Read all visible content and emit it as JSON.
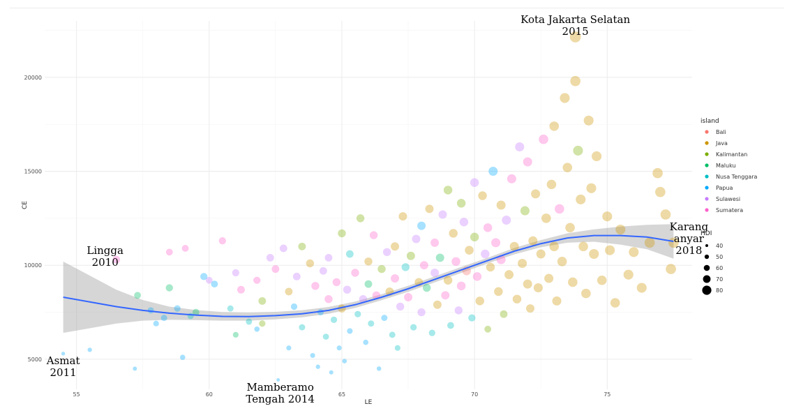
{
  "chart_data": {
    "type": "scatter",
    "xlabel": "LE",
    "ylabel": "CE",
    "xlim": [
      53.8,
      78.2
    ],
    "ylim": [
      3400,
      23000
    ],
    "x_ticks": [
      55,
      60,
      65,
      70,
      75
    ],
    "y_ticks": [
      5000,
      10000,
      15000,
      20000
    ],
    "grid": true,
    "legend_placement": "right",
    "color_legend": {
      "title": "island",
      "entries": [
        {
          "name": "Bali",
          "color": "#F8766D"
        },
        {
          "name": "Java",
          "color": "#CD9600"
        },
        {
          "name": "Kalimantan",
          "color": "#7CAE00"
        },
        {
          "name": "Maluku",
          "color": "#00BE67"
        },
        {
          "name": "Nusa Tenggara",
          "color": "#00BFC4"
        },
        {
          "name": "Papua",
          "color": "#00A9FF"
        },
        {
          "name": "Sulawesi",
          "color": "#C77CFF"
        },
        {
          "name": "Sumatera",
          "color": "#FF61CC"
        }
      ]
    },
    "size_legend": {
      "title": "HDI",
      "values": [
        40,
        50,
        60,
        70,
        80
      ]
    },
    "annotations": [
      {
        "lines": [
          "Kota Jakarta Selatan",
          "2015"
        ],
        "x": 73.8,
        "y": 22150
      },
      {
        "lines": [
          "Lingga",
          "2010"
        ],
        "x": 56.5,
        "y": 10300
      },
      {
        "lines": [
          "Karang",
          "anyar",
          "2018"
        ],
        "x": 77.5,
        "y": 11200
      },
      {
        "lines": [
          "Asmat",
          "2011"
        ],
        "x": 54.5,
        "y": 5300
      },
      {
        "lines": [
          "Mamberamo",
          "Tengah 2014"
        ],
        "x": 62.6,
        "y": 3950
      }
    ],
    "smooth": {
      "color": "#3366FF",
      "x": [
        54.5,
        55.5,
        56.5,
        57.5,
        58.5,
        59.5,
        60.5,
        61.5,
        62.5,
        63.5,
        64.5,
        65.5,
        66.5,
        67.5,
        68.5,
        69.5,
        70.5,
        71.5,
        72.5,
        73.5,
        74.5,
        75.5,
        76.5,
        77.5
      ],
      "y": [
        8300,
        8050,
        7800,
        7600,
        7450,
        7350,
        7280,
        7270,
        7320,
        7420,
        7600,
        7900,
        8300,
        8750,
        9250,
        9750,
        10250,
        10750,
        11150,
        11450,
        11580,
        11580,
        11500,
        11270
      ],
      "ymin": [
        6400,
        6650,
        6900,
        7050,
        7100,
        7080,
        7050,
        7050,
        7120,
        7230,
        7420,
        7730,
        8140,
        8590,
        9090,
        9590,
        10100,
        10580,
        10960,
        11200,
        11250,
        11100,
        10850,
        10350
      ],
      "ymax": [
        10200,
        9450,
        8700,
        8150,
        7800,
        7620,
        7510,
        7490,
        7520,
        7610,
        7780,
        8070,
        8460,
        8910,
        9410,
        9910,
        10400,
        10920,
        11340,
        11700,
        11910,
        12060,
        12150,
        12190
      ]
    },
    "points": [
      [
        54.5,
        5300,
        "Papua",
        42
      ],
      [
        55.5,
        5500,
        "Papua",
        45
      ],
      [
        56.5,
        10300,
        "Sumatera",
        62
      ],
      [
        57.2,
        4500,
        "Papua",
        44
      ],
      [
        57.3,
        8400,
        "Maluku",
        58
      ],
      [
        57.8,
        7600,
        "Papua",
        55
      ],
      [
        58.0,
        6900,
        "Papua",
        52
      ],
      [
        58.3,
        7200,
        "Papua",
        55
      ],
      [
        58.5,
        8800,
        "Maluku",
        60
      ],
      [
        58.5,
        10700,
        "Sumatera",
        58
      ],
      [
        58.8,
        7700,
        "Papua",
        56
      ],
      [
        59.0,
        5100,
        "Papua",
        50
      ],
      [
        59.1,
        10900,
        "Sumatera",
        58
      ],
      [
        59.3,
        7300,
        "Nusa Tenggara",
        55
      ],
      [
        59.5,
        7500,
        "Maluku",
        58
      ],
      [
        59.8,
        9400,
        "Papua",
        60
      ],
      [
        60.0,
        9200,
        "Sulawesi",
        58
      ],
      [
        60.2,
        9000,
        "Papua",
        58
      ],
      [
        60.5,
        11300,
        "Sumatera",
        60
      ],
      [
        60.8,
        7700,
        "Nusa Tenggara",
        55
      ],
      [
        61.0,
        6300,
        "Maluku",
        52
      ],
      [
        61.0,
        9600,
        "Sulawesi",
        60
      ],
      [
        61.2,
        8700,
        "Sumatera",
        62
      ],
      [
        61.5,
        7000,
        "Nusa Tenggara",
        55
      ],
      [
        61.8,
        6600,
        "Papua",
        50
      ],
      [
        61.8,
        9200,
        "Sumatera",
        60
      ],
      [
        62.0,
        8100,
        "Kalimantan",
        62
      ],
      [
        62.0,
        6900,
        "Kalimantan",
        56
      ],
      [
        62.3,
        10400,
        "Sulawesi",
        62
      ],
      [
        62.5,
        9800,
        "Sumatera",
        62
      ],
      [
        62.6,
        3900,
        "Papua",
        40
      ],
      [
        62.8,
        10900,
        "Sulawesi",
        62
      ],
      [
        63.0,
        8600,
        "Java",
        62
      ],
      [
        63.0,
        5600,
        "Papua",
        48
      ],
      [
        63.2,
        7800,
        "Papua",
        56
      ],
      [
        63.3,
        9400,
        "Sulawesi",
        62
      ],
      [
        63.5,
        11000,
        "Kalimantan",
        62
      ],
      [
        63.5,
        6700,
        "Nusa Tenggara",
        55
      ],
      [
        63.8,
        10100,
        "Java",
        64
      ],
      [
        63.9,
        5200,
        "Papua",
        48
      ],
      [
        64.0,
        8900,
        "Sumatera",
        64
      ],
      [
        64.1,
        4600,
        "Papua",
        45
      ],
      [
        64.2,
        7500,
        "Papua",
        55
      ],
      [
        64.3,
        9700,
        "Sulawesi",
        62
      ],
      [
        64.4,
        6200,
        "Nusa Tenggara",
        54
      ],
      [
        64.5,
        8200,
        "Sumatera",
        64
      ],
      [
        64.5,
        10400,
        "Sulawesi",
        62
      ],
      [
        64.6,
        4300,
        "Papua",
        44
      ],
      [
        64.7,
        7100,
        "Nusa Tenggara",
        56
      ],
      [
        64.8,
        9100,
        "Sumatera",
        64
      ],
      [
        64.9,
        5600,
        "Papua",
        48
      ],
      [
        65.0,
        11700,
        "Kalimantan",
        64
      ],
      [
        65.0,
        7700,
        "Java",
        64
      ],
      [
        65.1,
        4900,
        "Papua",
        46
      ],
      [
        65.2,
        8700,
        "Sulawesi",
        64
      ],
      [
        65.3,
        6500,
        "Papua",
        52
      ],
      [
        65.3,
        10600,
        "Nusa Tenggara",
        62
      ],
      [
        65.5,
        9600,
        "Sumatera",
        64
      ],
      [
        65.6,
        7400,
        "Nusa Tenggara",
        56
      ],
      [
        65.7,
        12500,
        "Kalimantan",
        64
      ],
      [
        65.8,
        8200,
        "Sulawesi",
        64
      ],
      [
        65.9,
        5900,
        "Papua",
        50
      ],
      [
        66.0,
        10200,
        "Java",
        64
      ],
      [
        66.0,
        9000,
        "Maluku",
        62
      ],
      [
        66.1,
        6900,
        "Nusa Tenggara",
        55
      ],
      [
        66.2,
        11600,
        "Sumatera",
        64
      ],
      [
        66.3,
        8400,
        "Sumatera",
        64
      ],
      [
        66.4,
        4500,
        "Papua",
        46
      ],
      [
        66.5,
        9800,
        "Kalimantan",
        64
      ],
      [
        66.6,
        7200,
        "Papua",
        55
      ],
      [
        66.7,
        10700,
        "Sulawesi",
        64
      ],
      [
        66.8,
        8600,
        "Java",
        66
      ],
      [
        66.9,
        6300,
        "Nusa Tenggara",
        55
      ],
      [
        67.0,
        11000,
        "Java",
        66
      ],
      [
        67.0,
        9300,
        "Sumatera",
        66
      ],
      [
        67.1,
        5600,
        "Nusa Tenggara",
        52
      ],
      [
        67.2,
        7800,
        "Sulawesi",
        64
      ],
      [
        67.3,
        12600,
        "Java",
        66
      ],
      [
        67.4,
        9900,
        "Nusa Tenggara",
        64
      ],
      [
        67.5,
        8300,
        "Sumatera",
        66
      ],
      [
        67.6,
        10500,
        "Kalimantan",
        66
      ],
      [
        67.7,
        6700,
        "Nusa Tenggara",
        56
      ],
      [
        67.8,
        11400,
        "Sulawesi",
        66
      ],
      [
        67.9,
        9100,
        "Java",
        66
      ],
      [
        68.0,
        7500,
        "Sulawesi",
        64
      ],
      [
        68.0,
        12100,
        "Papua",
        66
      ],
      [
        68.1,
        10000,
        "Sumatera",
        66
      ],
      [
        68.2,
        8800,
        "Maluku",
        64
      ],
      [
        68.3,
        13000,
        "Java",
        66
      ],
      [
        68.4,
        6400,
        "Nusa Tenggara",
        56
      ],
      [
        68.5,
        9600,
        "Sulawesi",
        66
      ],
      [
        68.5,
        11200,
        "Sumatera",
        66
      ],
      [
        68.6,
        7900,
        "Java",
        66
      ],
      [
        68.7,
        10400,
        "Maluku",
        66
      ],
      [
        68.8,
        12700,
        "Sulawesi",
        66
      ],
      [
        68.9,
        8400,
        "Sumatera",
        66
      ],
      [
        69.0,
        14000,
        "Kalimantan",
        68
      ],
      [
        69.0,
        9200,
        "Java",
        68
      ],
      [
        69.1,
        6800,
        "Nusa Tenggara",
        58
      ],
      [
        69.2,
        11700,
        "Java",
        68
      ],
      [
        69.3,
        10200,
        "Sumatera",
        68
      ],
      [
        69.4,
        7600,
        "Sulawesi",
        64
      ],
      [
        69.5,
        13300,
        "Kalimantan",
        68
      ],
      [
        69.5,
        8900,
        "Sumatera",
        68
      ],
      [
        69.6,
        12300,
        "Sulawesi",
        68
      ],
      [
        69.7,
        9700,
        "Bali",
        68
      ],
      [
        69.8,
        10800,
        "Java",
        68
      ],
      [
        69.9,
        7200,
        "Nusa Tenggara",
        60
      ],
      [
        70.0,
        14400,
        "Sulawesi",
        68
      ],
      [
        70.0,
        11500,
        "Kalimantan",
        68
      ],
      [
        70.1,
        9400,
        "Sumatera",
        68
      ],
      [
        70.2,
        8100,
        "Java",
        68
      ],
      [
        70.3,
        13700,
        "Java",
        68
      ],
      [
        70.4,
        10600,
        "Sulawesi",
        68
      ],
      [
        70.5,
        12000,
        "Sumatera",
        68
      ],
      [
        70.5,
        6600,
        "Kalimantan",
        58
      ],
      [
        70.6,
        9900,
        "Java",
        68
      ],
      [
        70.7,
        15000,
        "Papua",
        70
      ],
      [
        70.8,
        11200,
        "Sumatera",
        70
      ],
      [
        70.9,
        8600,
        "Java",
        68
      ],
      [
        71.0,
        13200,
        "Java",
        70
      ],
      [
        71.0,
        10300,
        "Sumatera",
        70
      ],
      [
        71.1,
        7400,
        "Kalimantan",
        62
      ],
      [
        71.2,
        12400,
        "Sulawesi",
        70
      ],
      [
        71.3,
        9500,
        "Java",
        70
      ],
      [
        71.4,
        14600,
        "Sumatera",
        70
      ],
      [
        71.5,
        11000,
        "Java",
        70
      ],
      [
        71.6,
        8200,
        "Java",
        68
      ],
      [
        71.7,
        16300,
        "Sulawesi",
        70
      ],
      [
        71.8,
        10100,
        "Java",
        70
      ],
      [
        71.9,
        12900,
        "Kalimantan",
        70
      ],
      [
        72.0,
        9000,
        "Java",
        70
      ],
      [
        72.0,
        15500,
        "Sumatera",
        70
      ],
      [
        72.1,
        7700,
        "Java",
        66
      ],
      [
        72.2,
        11300,
        "Java",
        70
      ],
      [
        72.3,
        13800,
        "Java",
        70
      ],
      [
        72.4,
        8800,
        "Java",
        70
      ],
      [
        72.5,
        10600,
        "Java",
        70
      ],
      [
        72.6,
        16700,
        "Sumatera",
        72
      ],
      [
        72.7,
        12500,
        "Java",
        72
      ],
      [
        72.8,
        9300,
        "Java",
        70
      ],
      [
        72.9,
        14300,
        "Java",
        72
      ],
      [
        73.0,
        17400,
        "Java",
        72
      ],
      [
        73.0,
        11000,
        "Java",
        72
      ],
      [
        73.1,
        8100,
        "Java",
        70
      ],
      [
        73.2,
        13000,
        "Sumatera",
        72
      ],
      [
        73.3,
        10200,
        "Java",
        72
      ],
      [
        73.4,
        18900,
        "Java",
        74
      ],
      [
        73.5,
        15200,
        "Java",
        72
      ],
      [
        73.6,
        12000,
        "Java",
        72
      ],
      [
        73.7,
        9100,
        "Java",
        72
      ],
      [
        73.8,
        22150,
        "Java",
        80
      ],
      [
        73.8,
        19800,
        "Java",
        76
      ],
      [
        73.9,
        16100,
        "Kalimantan",
        74
      ],
      [
        74.0,
        13500,
        "Java",
        74
      ],
      [
        74.1,
        11000,
        "Java",
        72
      ],
      [
        74.2,
        8500,
        "Java",
        72
      ],
      [
        74.3,
        17700,
        "Java",
        74
      ],
      [
        74.4,
        14100,
        "Java",
        74
      ],
      [
        74.5,
        10600,
        "Java",
        74
      ],
      [
        74.6,
        15800,
        "Java",
        74
      ],
      [
        74.8,
        9200,
        "Java",
        72
      ],
      [
        75.0,
        12600,
        "Java",
        74
      ],
      [
        75.1,
        10800,
        "Java",
        74
      ],
      [
        75.3,
        8000,
        "Java",
        72
      ],
      [
        75.5,
        11900,
        "Java",
        74
      ],
      [
        75.8,
        9500,
        "Java",
        74
      ],
      [
        76.0,
        10700,
        "Java",
        74
      ],
      [
        76.3,
        8800,
        "Java",
        74
      ],
      [
        76.6,
        11200,
        "Java",
        76
      ],
      [
        76.9,
        14900,
        "Java",
        76
      ],
      [
        77.0,
        13900,
        "Java",
        76
      ],
      [
        77.2,
        12700,
        "Java",
        76
      ],
      [
        77.4,
        9800,
        "Java",
        76
      ],
      [
        77.5,
        11200,
        "Java",
        76
      ]
    ]
  }
}
